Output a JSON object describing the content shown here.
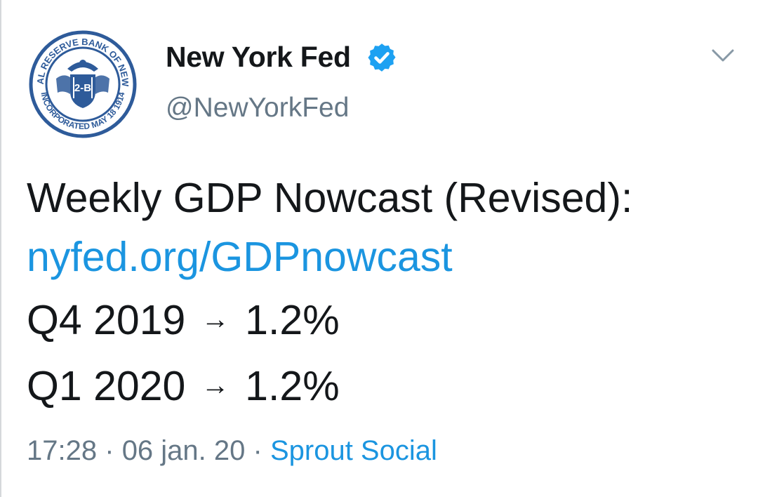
{
  "tweet": {
    "author": {
      "display_name": "New York Fed",
      "handle": "@NewYorkFed",
      "verified": true,
      "avatar_icon": "federal-reserve-seal-icon",
      "avatar_ring_text_top": "FEDERAL RESERVE BANK OF NEW YORK",
      "avatar_ring_text_bottom": "INCORPORATED MAY 18 1914",
      "avatar_center_text": "2-B"
    },
    "menu_icon": "chevron-down-icon",
    "lines": {
      "headline": "Weekly GDP Nowcast (Revised):",
      "link": "nyfed.org/GDPnowcast",
      "q4_label": "Q4 2019",
      "q4_value": "1.2%",
      "q1_label": "Q1 2020",
      "q1_value": "1.2%",
      "arrow": "→"
    },
    "meta": {
      "time": "17:28",
      "date": "06 jan. 20",
      "separator": "·",
      "source": "Sprout Social"
    },
    "colors": {
      "text": "#14171a",
      "secondary": "#657786",
      "link": "#1b95e0",
      "verified": "#1da1f2",
      "seal": "#2e5b9a"
    }
  }
}
